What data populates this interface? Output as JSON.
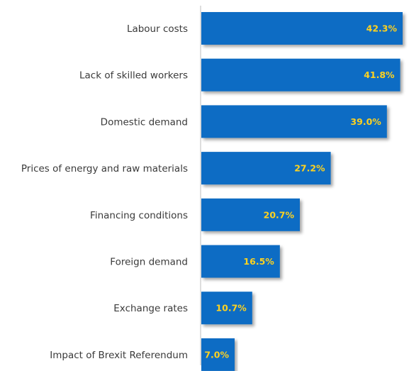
{
  "chart_data": {
    "type": "bar",
    "orientation": "horizontal",
    "categories": [
      "Labour costs",
      "Lack of skilled workers",
      "Domestic demand",
      "Prices of energy and raw materials",
      "Financing conditions",
      "Foreign demand",
      "Exchange rates",
      "Impact of Brexit Referendum"
    ],
    "values": [
      42.3,
      41.8,
      39.0,
      27.2,
      20.7,
      16.5,
      10.7,
      7.0
    ],
    "value_labels": [
      "42.3%",
      "41.8%",
      "39.0%",
      "27.2%",
      "20.7%",
      "16.5%",
      "10.7%",
      "7.0%"
    ],
    "unit": "%",
    "xlim": [
      0,
      42.3
    ],
    "grid": false,
    "legend": "none",
    "colors": {
      "bar": "#0a6cc4",
      "value_label": "#ffd21f",
      "category_label": "#3a3a3a",
      "axis": "#c8c8c8"
    }
  }
}
